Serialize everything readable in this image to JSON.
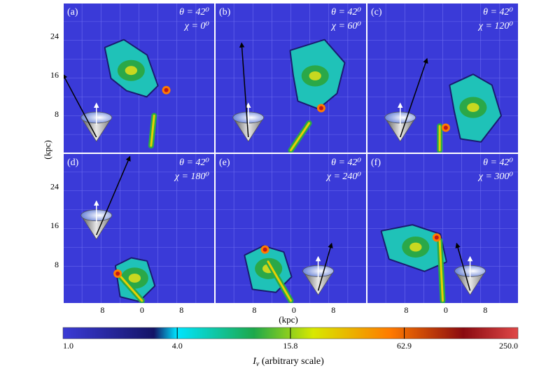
{
  "figure": {
    "y_axis_label": "(kpc)",
    "x_axis_label": "(kpc)",
    "colorbar_label_main": "I",
    "colorbar_label_sub": "ν",
    "colorbar_label_rest": " (arbitrary scale)"
  },
  "chart_data": {
    "type": "heatmap",
    "description_units": "kpc",
    "y_ticks": [
      "8",
      "16",
      "24"
    ],
    "x_ticks": [
      "8",
      "0",
      "8"
    ],
    "panels": [
      {
        "id": "a",
        "label": "(a)",
        "theta": "θ = 42⁰",
        "chi": "χ = 0⁰"
      },
      {
        "id": "b",
        "label": "(b)",
        "theta": "θ = 42⁰",
        "chi": "χ = 60⁰"
      },
      {
        "id": "c",
        "label": "(c)",
        "theta": "θ = 42⁰",
        "chi": "χ = 120⁰"
      },
      {
        "id": "d",
        "label": "(d)",
        "theta": "θ = 42⁰",
        "chi": "χ = 180⁰"
      },
      {
        "id": "e",
        "label": "(e)",
        "theta": "θ = 42⁰",
        "chi": "χ = 240⁰"
      },
      {
        "id": "f",
        "label": "(f)",
        "theta": "θ = 42⁰",
        "chi": "χ = 300⁰"
      }
    ],
    "colorbar": {
      "scale": "log",
      "min": 1.0,
      "max": 250.0,
      "ticks": [
        "1.0",
        "4.0",
        "15.8",
        "62.9",
        "250.0"
      ],
      "colors": [
        "#3b3bd6",
        "#1a1a6e",
        "#00e5ff",
        "#1ea84a",
        "#d8e800",
        "#ff7a00",
        "#8a0a10",
        "#e04848"
      ]
    },
    "background_color": "#3a3ad8",
    "grid": true
  }
}
